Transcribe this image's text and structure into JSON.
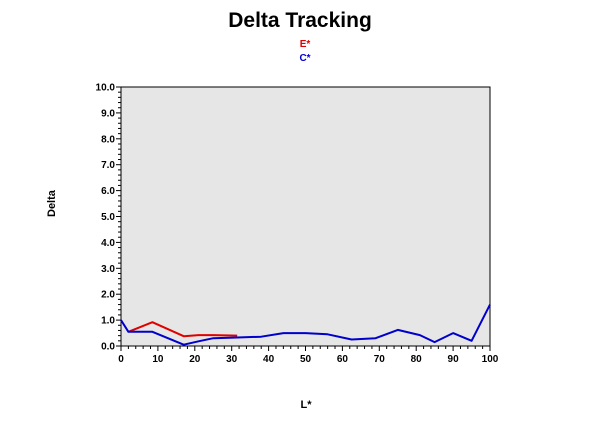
{
  "chart_data": {
    "type": "line",
    "title": "Delta Tracking",
    "xlabel": "L*",
    "ylabel": "Delta",
    "xlim": [
      0,
      100
    ],
    "ylim": [
      0,
      10
    ],
    "x_ticks": [
      0,
      10,
      20,
      30,
      40,
      50,
      60,
      70,
      80,
      90,
      100
    ],
    "y_ticks": [
      "0.0",
      "1.0",
      "2.0",
      "3.0",
      "4.0",
      "5.0",
      "6.0",
      "7.0",
      "8.0",
      "9.0",
      "10.0"
    ],
    "grid": false,
    "legend_placement": "top-center",
    "series": [
      {
        "name": "E*",
        "color": "#e00000",
        "x": [
          2,
          8.5,
          17,
          21,
          25,
          31.5
        ],
        "y": [
          0.55,
          0.92,
          0.38,
          0.42,
          0.42,
          0.4
        ]
      },
      {
        "name": "C*",
        "color": "#0000cc",
        "x": [
          0,
          2,
          8.5,
          17,
          21,
          25,
          31.5,
          38,
          44,
          50,
          56,
          62.5,
          69,
          75,
          81,
          85,
          90,
          95,
          100
        ],
        "y": [
          1.0,
          0.55,
          0.55,
          0.05,
          0.18,
          0.3,
          0.33,
          0.36,
          0.5,
          0.5,
          0.45,
          0.25,
          0.3,
          0.62,
          0.42,
          0.15,
          0.5,
          0.2,
          1.6
        ]
      }
    ]
  }
}
